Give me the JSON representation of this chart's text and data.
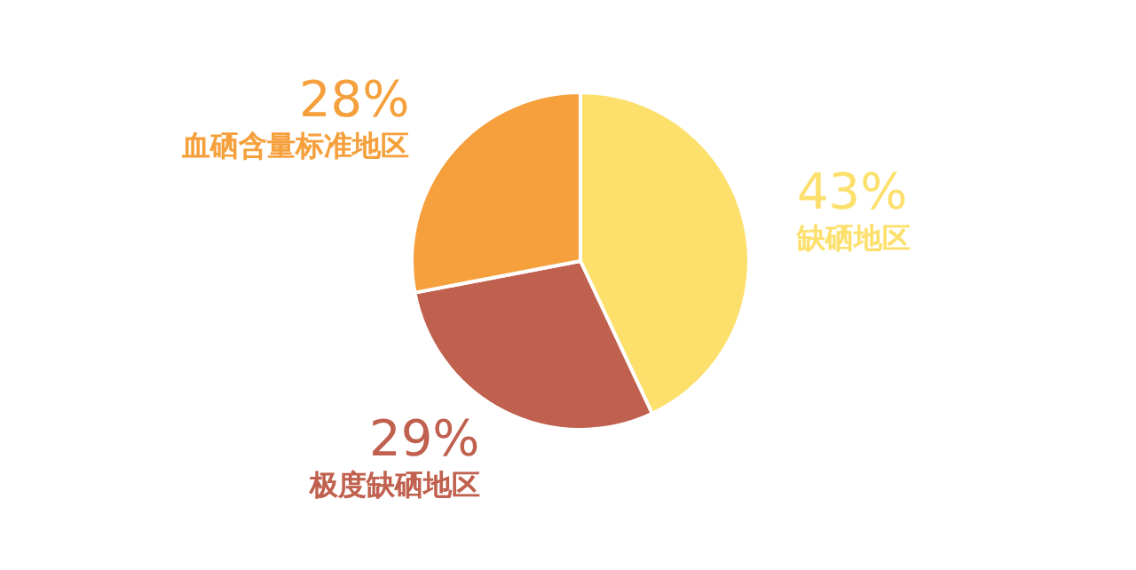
{
  "chart_data": {
    "type": "pie",
    "categories": [
      "缺硒地区",
      "极度缺硒地区",
      "血硒含量标准地区"
    ],
    "values": [
      43,
      29,
      28
    ],
    "colors": [
      "#fde06c",
      "#c0604e",
      "#f5a03c"
    ],
    "value_labels": [
      "43%",
      "29%",
      "28%"
    ]
  }
}
